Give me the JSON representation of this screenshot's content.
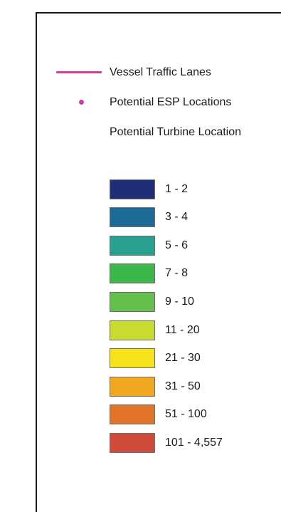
{
  "legend": {
    "vessel_lanes_label": "Vessel Traffic Lanes",
    "esp_label": "Potential ESP Locations",
    "turbine_label": "Potential Turbine Location",
    "vessel_lanes_color": "#d23c9a",
    "esp_color": "#d23c9a",
    "classes": [
      {
        "label": "1 - 2",
        "color": "#1e2f78"
      },
      {
        "label": "3 - 4",
        "color": "#1e6a96"
      },
      {
        "label": "5 - 6",
        "color": "#27a08f"
      },
      {
        "label": "7 - 8",
        "color": "#3cb84b"
      },
      {
        "label": "9 - 10",
        "color": "#64c04a"
      },
      {
        "label": "11 - 20",
        "color": "#c9dc2e"
      },
      {
        "label": "21 - 30",
        "color": "#f7e21b"
      },
      {
        "label": "31 - 50",
        "color": "#f0a722"
      },
      {
        "label": "51 - 100",
        "color": "#e2742a"
      },
      {
        "label": "101 - 4,557",
        "color": "#cf4b3a"
      }
    ]
  }
}
